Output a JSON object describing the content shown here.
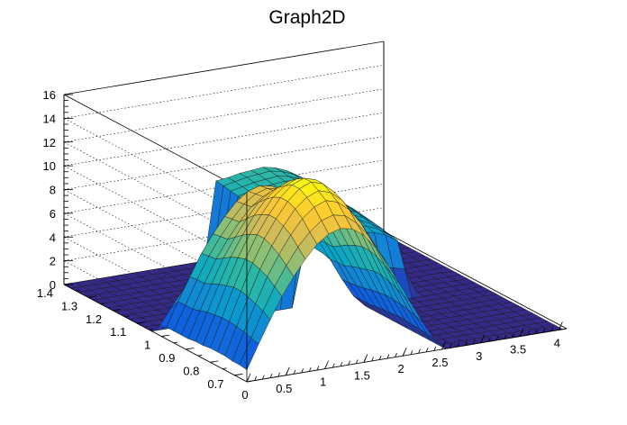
{
  "chart_data": {
    "type": "surface",
    "title": "Graph2D",
    "xlabel": "",
    "ylabel": "",
    "zlabel": "",
    "x_ticks": [
      "0",
      "0.5",
      "1",
      "1.5",
      "2",
      "2.5",
      "3",
      "3.5",
      "4"
    ],
    "y_ticks": [
      "0.7",
      "0.8",
      "0.9",
      "1",
      "1.1",
      "1.2",
      "1.3",
      "1.4"
    ],
    "z_ticks": [
      "0",
      "2",
      "4",
      "6",
      "8",
      "10",
      "12",
      "14",
      "16"
    ],
    "xlim": [
      0,
      4.1
    ],
    "ylim": [
      0.65,
      1.4
    ],
    "zlim": [
      0,
      16
    ],
    "grid": true,
    "colormap": [
      "#352a87",
      "#0f5cdd",
      "#1481d6",
      "#06a4ca",
      "#2eb7a4",
      "#87bf77",
      "#d1bb59",
      "#fec832",
      "#f9fb0e"
    ],
    "grid_x": [
      0,
      0.15,
      0.3,
      0.45,
      0.6,
      0.75,
      0.9,
      1.05,
      1.2,
      1.35,
      1.5,
      1.65,
      1.8,
      1.95,
      2.1,
      2.25,
      2.4,
      2.55,
      2.7,
      2.85,
      3.0,
      3.15,
      3.3,
      3.45,
      3.6,
      3.75,
      3.9,
      4.05
    ],
    "grid_y": [
      0.65,
      0.68,
      0.71,
      0.74,
      0.77,
      0.8,
      0.83,
      0.86,
      0.89,
      0.92,
      0.95,
      0.98,
      1.01,
      1.04,
      1.07,
      1.1,
      1.13,
      1.16,
      1.19,
      1.22,
      1.25,
      1.28,
      1.31,
      1.34,
      1.37,
      1.4
    ],
    "z_values": [
      [
        1.0,
        1.1,
        1.1,
        1.2,
        1.2,
        1.2,
        1.1,
        1.1,
        1.0,
        1.0,
        1.0,
        1.0,
        0.7,
        0.0,
        0.0,
        0.0,
        0.0,
        0.0,
        0.0,
        0.0,
        0.0,
        0.0,
        0.0,
        0.0,
        0.0,
        0.0
      ],
      [
        3.0,
        3.2,
        3.4,
        3.5,
        3.6,
        3.6,
        3.5,
        3.4,
        3.2,
        3.0,
        3.0,
        3.0,
        2.1,
        0.0,
        0.0,
        0.0,
        0.0,
        0.0,
        0.0,
        0.0,
        0.0,
        0.0,
        0.0,
        0.0,
        0.0,
        0.0
      ],
      [
        4.9,
        5.3,
        5.6,
        5.8,
        6.0,
        6.0,
        5.8,
        5.6,
        5.3,
        5.0,
        5.0,
        4.9,
        3.4,
        0.0,
        0.0,
        0.0,
        0.0,
        0.0,
        0.0,
        0.0,
        0.0,
        0.0,
        0.0,
        0.0,
        0.0,
        0.0
      ],
      [
        6.7,
        7.2,
        7.7,
        8.0,
        8.2,
        8.2,
        8.0,
        7.7,
        7.3,
        6.9,
        6.8,
        6.7,
        4.7,
        0.0,
        0.0,
        0.0,
        0.0,
        0.0,
        0.0,
        0.0,
        0.0,
        0.0,
        0.0,
        0.0,
        0.0,
        0.0
      ],
      [
        8.2,
        8.8,
        9.4,
        9.8,
        10.1,
        10.1,
        9.8,
        9.4,
        8.9,
        8.4,
        8.3,
        8.2,
        5.8,
        0.0,
        0.0,
        0.0,
        0.0,
        0.0,
        0.0,
        0.0,
        0.0,
        0.0,
        0.0,
        0.0,
        0.0,
        0.0
      ],
      [
        9.5,
        10.2,
        10.9,
        11.3,
        11.6,
        11.6,
        11.3,
        10.9,
        10.3,
        9.7,
        9.6,
        9.5,
        6.7,
        0.0,
        0.0,
        0.0,
        0.0,
        0.0,
        0.0,
        0.0,
        0.0,
        0.0,
        0.0,
        0.0,
        0.0,
        0.0
      ],
      [
        10.6,
        11.3,
        12.1,
        12.6,
        12.9,
        12.9,
        12.6,
        12.1,
        11.5,
        10.8,
        10.7,
        10.6,
        7.4,
        0.0,
        0.0,
        0.0,
        0.0,
        0.0,
        0.0,
        0.0,
        0.0,
        0.0,
        0.0,
        0.0,
        0.0,
        0.0
      ],
      [
        11.3,
        12.1,
        12.9,
        13.4,
        13.8,
        13.8,
        13.4,
        12.9,
        12.2,
        11.5,
        11.4,
        11.3,
        7.9,
        0.0,
        0.0,
        0.0,
        0.0,
        0.0,
        0.0,
        0.0,
        0.0,
        0.0,
        0.0,
        0.0,
        0.0,
        0.0
      ],
      [
        11.6,
        12.4,
        13.3,
        13.8,
        14.2,
        14.2,
        13.8,
        13.3,
        12.5,
        11.8,
        11.7,
        11.6,
        8.2,
        0.0,
        0.0,
        0.0,
        0.0,
        0.0,
        0.0,
        0.0,
        0.0,
        0.0,
        0.0,
        0.0,
        0.0,
        0.0
      ],
      [
        11.4,
        12.2,
        13.0,
        13.5,
        13.9,
        13.9,
        13.5,
        13.0,
        12.3,
        11.6,
        11.5,
        11.4,
        8.0,
        0.0,
        0.0,
        0.0,
        0.0,
        0.0,
        0.0,
        0.0,
        0.0,
        0.0,
        0.0,
        0.0,
        0.0,
        0.0
      ],
      [
        10.7,
        11.4,
        12.2,
        12.7,
        13.0,
        13.0,
        12.7,
        12.2,
        11.6,
        10.9,
        10.8,
        10.7,
        7.5,
        0.0,
        0.0,
        0.0,
        0.0,
        0.0,
        0.0,
        0.0,
        0.0,
        0.0,
        0.0,
        0.0,
        0.0,
        0.0
      ],
      [
        9.5,
        10.2,
        10.9,
        11.3,
        11.6,
        11.6,
        11.3,
        10.9,
        10.3,
        9.7,
        9.6,
        9.5,
        6.7,
        0.0,
        0.0,
        0.0,
        0.0,
        0.0,
        0.0,
        0.0,
        0.0,
        0.0,
        0.0,
        0.0,
        0.0,
        0.0
      ],
      [
        8.0,
        8.6,
        9.2,
        9.5,
        9.8,
        9.8,
        9.5,
        9.2,
        8.7,
        8.2,
        8.1,
        8.0,
        5.6,
        0.0,
        0.0,
        0.0,
        0.0,
        0.0,
        0.0,
        0.0,
        0.0,
        0.0,
        0.0,
        0.0,
        0.0,
        0.0
      ],
      [
        6.2,
        6.6,
        7.1,
        7.4,
        7.6,
        7.6,
        7.4,
        7.1,
        6.7,
        6.3,
        6.3,
        6.2,
        5.4,
        4.6,
        4.8,
        5.0,
        5.2,
        5.4,
        5.6,
        5.8,
        6.0,
        6.2,
        6.3,
        6.4,
        6.5,
        6.6
      ],
      [
        4.4,
        4.7,
        5.0,
        5.2,
        5.4,
        5.4,
        5.2,
        5.0,
        4.8,
        4.5,
        4.5,
        4.4,
        4.6,
        4.8,
        5.0,
        5.2,
        5.4,
        5.6,
        5.8,
        6.0,
        6.2,
        6.4,
        6.5,
        6.6,
        6.7,
        6.7
      ],
      [
        2.6,
        2.8,
        3.0,
        3.1,
        3.2,
        3.2,
        3.1,
        3.0,
        2.8,
        2.7,
        2.6,
        2.6,
        3.8,
        5.0,
        5.2,
        5.4,
        5.6,
        5.8,
        6.0,
        6.2,
        6.4,
        6.6,
        6.7,
        6.8,
        6.9,
        6.9
      ],
      [
        1.0,
        1.1,
        1.2,
        1.2,
        1.3,
        1.3,
        1.2,
        1.2,
        1.1,
        1.0,
        1.0,
        1.0,
        3.2,
        5.2,
        5.4,
        5.6,
        5.8,
        6.0,
        6.2,
        6.4,
        6.5,
        6.7,
        6.8,
        6.9,
        7.0,
        7.0
      ],
      [
        0.0,
        0.0,
        0.0,
        0.0,
        0.0,
        0.0,
        0.0,
        0.0,
        0.0,
        0.0,
        0.0,
        0.0,
        3.0,
        5.4,
        5.6,
        5.8,
        6.0,
        6.2,
        6.3,
        6.5,
        6.6,
        6.8,
        6.9,
        7.0,
        7.1,
        7.1
      ],
      [
        0.0,
        0.0,
        0.0,
        0.0,
        0.0,
        0.0,
        0.0,
        0.0,
        0.0,
        0.0,
        0.0,
        0.0,
        2.7,
        5.4,
        5.6,
        5.8,
        6.0,
        6.1,
        6.3,
        6.4,
        6.5,
        6.6,
        6.8,
        6.8,
        6.9,
        6.9
      ],
      [
        0.0,
        0.0,
        0.0,
        0.0,
        0.0,
        0.0,
        0.0,
        0.0,
        0.0,
        0.0,
        0.0,
        0.0,
        2.6,
        5.2,
        5.4,
        5.6,
        5.7,
        5.9,
        6.0,
        6.1,
        6.2,
        6.3,
        6.4,
        6.4,
        6.5,
        6.5
      ],
      [
        0.0,
        0.0,
        0.0,
        0.0,
        0.0,
        0.0,
        0.0,
        0.0,
        0.0,
        0.0,
        0.0,
        0.0,
        2.4,
        4.8,
        5.0,
        5.1,
        5.3,
        5.4,
        5.5,
        5.6,
        5.7,
        5.8,
        5.8,
        5.9,
        5.9,
        5.9
      ],
      [
        0.0,
        0.0,
        0.0,
        0.0,
        0.0,
        0.0,
        0.0,
        0.0,
        0.0,
        0.0,
        0.0,
        0.0,
        2.1,
        4.2,
        4.3,
        4.5,
        4.6,
        4.7,
        4.8,
        4.9,
        4.9,
        5.0,
        5.0,
        5.1,
        5.1,
        5.1
      ],
      [
        0.0,
        0.0,
        0.0,
        0.0,
        0.0,
        0.0,
        0.0,
        0.0,
        0.0,
        0.0,
        0.0,
        0.0,
        0.0,
        0.0,
        0.0,
        0.0,
        0.0,
        0.0,
        0.0,
        0.0,
        0.0,
        0.0,
        0.0,
        0.0,
        0.0,
        0.0
      ],
      [
        0.0,
        0.0,
        0.0,
        0.0,
        0.0,
        0.0,
        0.0,
        0.0,
        0.0,
        0.0,
        0.0,
        0.0,
        0.0,
        0.0,
        0.0,
        0.0,
        0.0,
        0.0,
        0.0,
        0.0,
        0.0,
        0.0,
        0.0,
        0.0,
        0.0,
        0.0
      ],
      [
        0.0,
        0.0,
        0.0,
        0.0,
        0.0,
        0.0,
        0.0,
        0.0,
        0.0,
        0.0,
        0.0,
        0.0,
        0.0,
        0.0,
        0.0,
        0.0,
        0.0,
        0.0,
        0.0,
        0.0,
        0.0,
        0.0,
        0.0,
        0.0,
        0.0,
        0.0
      ],
      [
        0.0,
        0.0,
        0.0,
        0.0,
        0.0,
        0.0,
        0.0,
        0.0,
        0.0,
        0.0,
        0.0,
        0.0,
        0.0,
        0.0,
        0.0,
        0.0,
        0.0,
        0.0,
        0.0,
        0.0,
        0.0,
        0.0,
        0.0,
        0.0,
        0.0,
        0.0
      ],
      [
        0.0,
        0.0,
        0.0,
        0.0,
        0.0,
        0.0,
        0.0,
        0.0,
        0.0,
        0.0,
        0.0,
        0.0,
        0.0,
        0.0,
        0.0,
        0.0,
        0.0,
        0.0,
        0.0,
        0.0,
        0.0,
        0.0,
        0.0,
        0.0,
        0.0,
        0.0
      ],
      [
        0.0,
        0.0,
        0.0,
        0.0,
        0.0,
        0.0,
        0.0,
        0.0,
        0.0,
        0.0,
        0.0,
        0.0,
        0.0,
        0.0,
        0.0,
        0.0,
        0.0,
        0.0,
        0.0,
        0.0,
        0.0,
        0.0,
        0.0,
        0.0,
        0.0,
        0.0
      ]
    ]
  }
}
